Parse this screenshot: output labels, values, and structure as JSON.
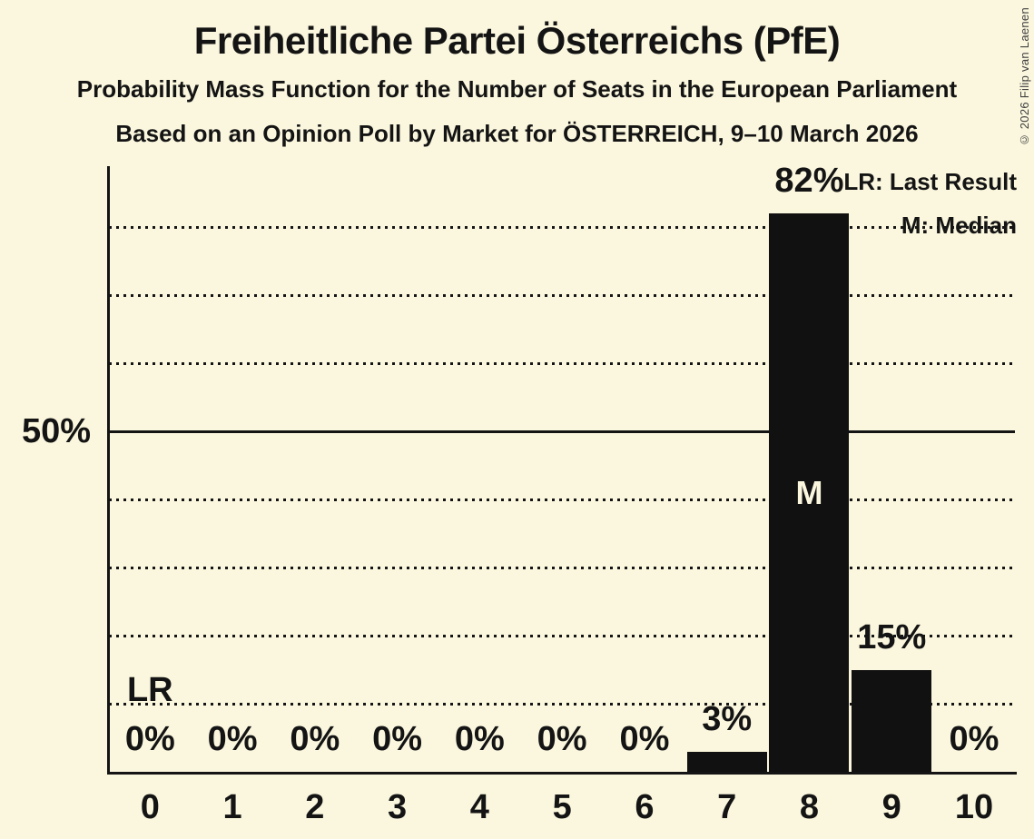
{
  "copyright": "© 2026 Filip van Laenen",
  "colors": {
    "background": "#fbf7de",
    "bar": "#111111",
    "text": "#141414",
    "median_text": "#fbf7de"
  },
  "chart_data": {
    "type": "bar",
    "title": "Freiheitliche Partei Österreichs (PfE)",
    "subtitle": "Probability Mass Function for the Number of Seats in the European Parliament",
    "source": "Based on an Opinion Poll by Market for ÖSTERREICH, 9–10 March 2026",
    "categories": [
      "0",
      "1",
      "2",
      "3",
      "4",
      "5",
      "6",
      "7",
      "8",
      "9",
      "10"
    ],
    "values": [
      0,
      0,
      0,
      0,
      0,
      0,
      0,
      3,
      82,
      15,
      0
    ],
    "bar_labels": [
      "0%",
      "0%",
      "0%",
      "0%",
      "0%",
      "0%",
      "0%",
      "3%",
      "82%",
      "15%",
      "0%"
    ],
    "xlabel": "",
    "ylabel": "",
    "ylim": [
      0,
      89
    ],
    "y_tick_labels": [
      "50%"
    ],
    "y_tick_values": [
      50
    ],
    "gridlines_percent": [
      10,
      20,
      30,
      40,
      50,
      60,
      70,
      80
    ],
    "grid": "horizontal-dotted",
    "legend": [
      "LR: Last Result",
      "M: Median"
    ],
    "legend_position": "top-right",
    "annotations": {
      "median_category": "8",
      "median_marker": "M",
      "last_result_category": "0",
      "last_result_marker": "LR"
    }
  }
}
